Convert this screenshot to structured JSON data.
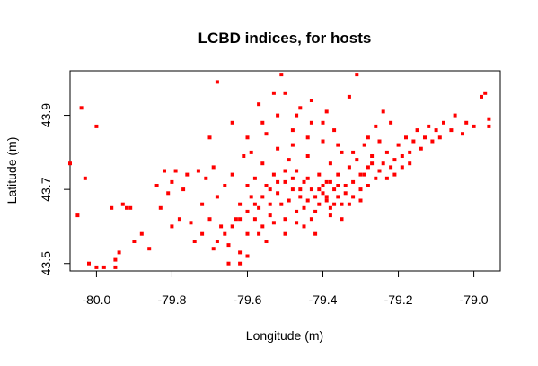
{
  "chart_data": {
    "type": "scatter",
    "title": "LCBD indices, for hosts",
    "xlabel": "Longitude (m)",
    "ylabel": "Latitude (m)",
    "xlim": [
      -80.07,
      -78.93
    ],
    "ylim": [
      43.48,
      44.02
    ],
    "xticks": [
      -80.0,
      -79.8,
      -79.6,
      -79.4,
      -79.2,
      -79.0
    ],
    "xtick_labels": [
      "-80.0",
      "-79.8",
      "-79.6",
      "-79.4",
      "-79.2",
      "-79.0"
    ],
    "yticks": [
      43.5,
      43.7,
      43.9
    ],
    "ytick_labels": [
      "43.5",
      "43.7",
      "43.9"
    ],
    "grid": false,
    "legend": "none",
    "series": [
      {
        "color": "#ff0000",
        "marker": "square",
        "points": [
          [
            -80.07,
            43.77
          ],
          [
            -80.05,
            43.63
          ],
          [
            -80.04,
            43.92
          ],
          [
            -80.03,
            43.73
          ],
          [
            -80.02,
            43.5
          ],
          [
            -80.0,
            43.87
          ],
          [
            -80.0,
            43.49
          ],
          [
            -79.98,
            43.49
          ],
          [
            -79.96,
            43.65
          ],
          [
            -79.95,
            43.51
          ],
          [
            -79.95,
            43.49
          ],
          [
            -79.94,
            43.53
          ],
          [
            -79.93,
            43.66
          ],
          [
            -79.92,
            43.65
          ],
          [
            -79.91,
            43.65
          ],
          [
            -79.9,
            43.56
          ],
          [
            -79.88,
            43.58
          ],
          [
            -79.86,
            43.54
          ],
          [
            -79.84,
            43.71
          ],
          [
            -79.83,
            43.65
          ],
          [
            -79.82,
            43.75
          ],
          [
            -79.81,
            43.69
          ],
          [
            -79.8,
            43.72
          ],
          [
            -79.79,
            43.75
          ],
          [
            -79.78,
            43.62
          ],
          [
            -79.77,
            43.7
          ],
          [
            -79.76,
            43.74
          ],
          [
            -79.75,
            43.61
          ],
          [
            -79.74,
            43.56
          ],
          [
            -79.73,
            43.75
          ],
          [
            -79.72,
            43.66
          ],
          [
            -79.72,
            43.58
          ],
          [
            -79.71,
            43.73
          ],
          [
            -79.7,
            43.84
          ],
          [
            -79.7,
            43.62
          ],
          [
            -79.69,
            43.76
          ],
          [
            -79.69,
            43.54
          ],
          [
            -79.68,
            43.99
          ],
          [
            -79.68,
            43.68
          ],
          [
            -79.67,
            43.6
          ],
          [
            -79.66,
            43.71
          ],
          [
            -79.65,
            43.55
          ],
          [
            -79.65,
            43.5
          ],
          [
            -79.64,
            43.88
          ],
          [
            -79.64,
            43.74
          ],
          [
            -79.63,
            43.62
          ],
          [
            -79.62,
            43.66
          ],
          [
            -79.62,
            43.53
          ],
          [
            -79.61,
            43.79
          ],
          [
            -79.6,
            43.58
          ],
          [
            -79.6,
            43.71
          ],
          [
            -79.59,
            43.68
          ],
          [
            -79.59,
            43.8
          ],
          [
            -79.58,
            43.62
          ],
          [
            -79.58,
            43.73
          ],
          [
            -79.57,
            43.93
          ],
          [
            -79.57,
            43.65
          ],
          [
            -79.56,
            43.6
          ],
          [
            -79.56,
            43.77
          ],
          [
            -79.55,
            43.71
          ],
          [
            -79.55,
            43.85
          ],
          [
            -79.54,
            43.66
          ],
          [
            -79.54,
            43.63
          ],
          [
            -79.53,
            43.74
          ],
          [
            -79.53,
            43.96
          ],
          [
            -79.52,
            43.69
          ],
          [
            -79.52,
            43.81
          ],
          [
            -79.51,
            43.66
          ],
          [
            -79.51,
            44.01
          ],
          [
            -79.5,
            43.72
          ],
          [
            -79.5,
            43.62
          ],
          [
            -79.49,
            43.78
          ],
          [
            -79.49,
            43.67
          ],
          [
            -79.48,
            43.86
          ],
          [
            -79.48,
            43.7
          ],
          [
            -79.47,
            43.75
          ],
          [
            -79.47,
            43.64
          ],
          [
            -79.46,
            43.68
          ],
          [
            -79.46,
            43.92
          ],
          [
            -79.45,
            43.72
          ],
          [
            -79.45,
            43.65
          ],
          [
            -79.44,
            43.79
          ],
          [
            -79.44,
            43.67
          ],
          [
            -79.43,
            43.7
          ],
          [
            -79.43,
            43.88
          ],
          [
            -79.42,
            43.68
          ],
          [
            -79.42,
            43.64
          ],
          [
            -79.41,
            43.74
          ],
          [
            -79.41,
            43.66
          ],
          [
            -79.4,
            43.69
          ],
          [
            -79.4,
            43.83
          ],
          [
            -79.39,
            43.67
          ],
          [
            -79.39,
            43.72
          ],
          [
            -79.38,
            43.65
          ],
          [
            -79.38,
            43.77
          ],
          [
            -79.37,
            43.7
          ],
          [
            -79.37,
            43.86
          ],
          [
            -79.36,
            43.68
          ],
          [
            -79.36,
            43.74
          ],
          [
            -79.35,
            43.66
          ],
          [
            -79.35,
            43.8
          ],
          [
            -79.34,
            43.71
          ],
          [
            -79.34,
            43.69
          ],
          [
            -79.33,
            43.76
          ],
          [
            -79.33,
            43.95
          ],
          [
            -79.32,
            43.72
          ],
          [
            -79.32,
            43.68
          ],
          [
            -79.31,
            43.78
          ],
          [
            -79.31,
            44.01
          ],
          [
            -79.3,
            43.74
          ],
          [
            -79.3,
            43.7
          ],
          [
            -79.29,
            43.82
          ],
          [
            -79.28,
            43.76
          ],
          [
            -79.28,
            43.71
          ],
          [
            -79.27,
            43.79
          ],
          [
            -79.26,
            43.73
          ],
          [
            -79.25,
            43.75
          ],
          [
            -79.25,
            43.83
          ],
          [
            -79.24,
            43.77
          ],
          [
            -79.23,
            43.8
          ],
          [
            -79.22,
            43.76
          ],
          [
            -79.22,
            43.88
          ],
          [
            -79.21,
            43.78
          ],
          [
            -79.2,
            43.82
          ],
          [
            -79.19,
            43.79
          ],
          [
            -79.18,
            43.84
          ],
          [
            -79.17,
            43.8
          ],
          [
            -79.16,
            43.83
          ],
          [
            -79.15,
            43.86
          ],
          [
            -79.14,
            43.81
          ],
          [
            -79.13,
            43.84
          ],
          [
            -79.12,
            43.87
          ],
          [
            -79.11,
            43.83
          ],
          [
            -79.1,
            43.86
          ],
          [
            -79.09,
            43.84
          ],
          [
            -79.08,
            43.88
          ],
          [
            -79.06,
            43.86
          ],
          [
            -79.05,
            43.9
          ],
          [
            -79.03,
            43.85
          ],
          [
            -79.02,
            43.88
          ],
          [
            -79.0,
            43.87
          ],
          [
            -78.98,
            43.95
          ],
          [
            -78.97,
            43.96
          ],
          [
            -78.96,
            43.89
          ],
          [
            -78.96,
            43.87
          ],
          [
            -79.8,
            43.6
          ],
          [
            -79.5,
            43.58
          ],
          [
            -79.35,
            43.62
          ],
          [
            -79.45,
            43.6
          ],
          [
            -79.55,
            43.56
          ],
          [
            -79.6,
            43.52
          ],
          [
            -79.62,
            43.5
          ],
          [
            -79.42,
            43.58
          ],
          [
            -79.38,
            43.72
          ],
          [
            -79.4,
            43.71
          ],
          [
            -79.41,
            43.7
          ],
          [
            -79.39,
            43.68
          ],
          [
            -79.37,
            43.66
          ],
          [
            -79.36,
            43.71
          ],
          [
            -79.44,
            43.73
          ],
          [
            -79.46,
            43.7
          ],
          [
            -79.48,
            43.73
          ],
          [
            -79.5,
            43.75
          ],
          [
            -79.52,
            43.72
          ],
          [
            -79.54,
            43.7
          ],
          [
            -79.56,
            43.68
          ],
          [
            -79.58,
            43.66
          ],
          [
            -79.6,
            43.64
          ],
          [
            -79.62,
            43.62
          ],
          [
            -79.64,
            43.6
          ],
          [
            -79.66,
            43.58
          ],
          [
            -79.68,
            43.56
          ],
          [
            -79.48,
            43.82
          ],
          [
            -79.44,
            43.84
          ],
          [
            -79.4,
            43.88
          ],
          [
            -79.36,
            43.82
          ],
          [
            -79.32,
            43.8
          ],
          [
            -79.28,
            43.84
          ],
          [
            -79.26,
            43.87
          ],
          [
            -79.24,
            43.91
          ],
          [
            -79.52,
            43.9
          ],
          [
            -79.56,
            43.88
          ],
          [
            -79.6,
            43.84
          ],
          [
            -79.5,
            43.96
          ],
          [
            -79.47,
            43.9
          ],
          [
            -79.43,
            43.94
          ],
          [
            -79.39,
            43.91
          ],
          [
            -79.29,
            43.74
          ],
          [
            -79.27,
            43.77
          ],
          [
            -79.23,
            43.73
          ],
          [
            -79.21,
            43.74
          ],
          [
            -79.19,
            43.76
          ],
          [
            -79.17,
            43.77
          ],
          [
            -79.33,
            43.66
          ],
          [
            -79.3,
            43.67
          ],
          [
            -79.38,
            43.63
          ],
          [
            -79.43,
            43.62
          ],
          [
            -79.47,
            43.61
          ],
          [
            -79.57,
            43.58
          ],
          [
            -79.53,
            43.61
          ]
        ]
      }
    ]
  }
}
